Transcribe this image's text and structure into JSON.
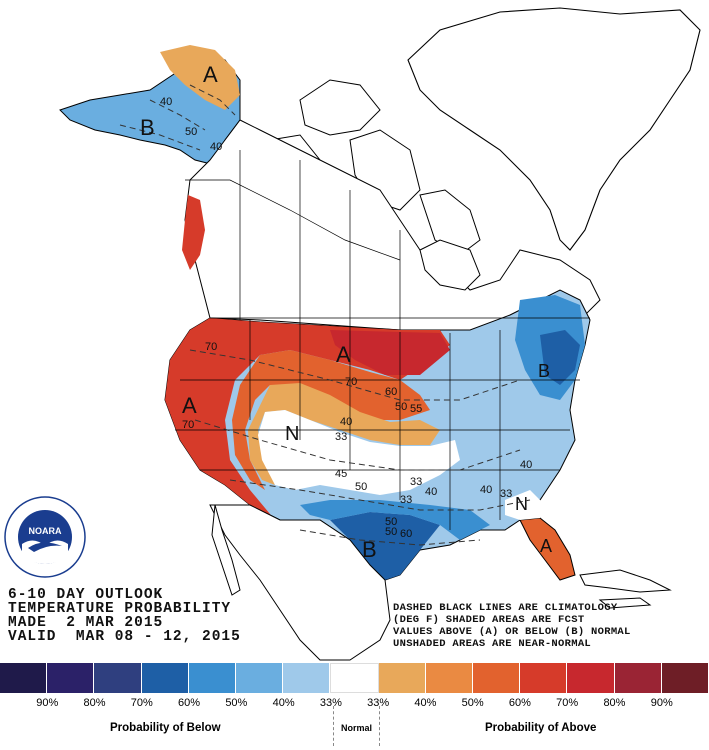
{
  "product": {
    "line1": "6-10 DAY OUTLOOK",
    "line2": "TEMPERATURE PROBABILITY",
    "line3": "MADE  2 MAR 2015",
    "line4": "VALID  MAR 08 - 12, 2015"
  },
  "notes": {
    "line1": "DASHED BLACK LINES ARE CLIMATOLOGY",
    "line2": "(DEG F) SHADED AREAS ARE FCST",
    "line3": "VALUES ABOVE (A) OR BELOW (B) NORMAL",
    "line4": "UNSHADED AREAS ARE NEAR-NORMAL"
  },
  "logo": {
    "text": "NOARA",
    "ring": "NATIONAL OCEANIC AND ATMOSPHERIC ADMINISTRATION · U.S. DEPARTMENT OF COMMERCE"
  },
  "legend": {
    "colors": [
      "#1f1a4a",
      "#2b2168",
      "#2f3f7f",
      "#1e5fa6",
      "#3a8fd0",
      "#6aaee0",
      "#9fc9ea",
      "#ffffff",
      "#e8a85a",
      "#ea8a42",
      "#e2622e",
      "#d63b2a",
      "#c7282e",
      "#9a2434",
      "#6e1e26"
    ],
    "ticks": [
      "90%",
      "80%",
      "70%",
      "60%",
      "50%",
      "40%",
      "33%",
      "33%",
      "40%",
      "50%",
      "60%",
      "70%",
      "80%",
      "90%"
    ],
    "below_caption": "Probability of Below",
    "normal_caption": "Normal",
    "above_caption": "Probability of Above"
  },
  "map_labels": {
    "A_alaska": "A",
    "B_alaska": "B",
    "A_west": "A",
    "A_plains": "A",
    "N_central": "N",
    "B_texas": "B",
    "B_east": "B",
    "N_southeast": "N",
    "A_florida": "A",
    "contours": [
      "40",
      "50",
      "40",
      "70",
      "70",
      "70",
      "60",
      "50",
      "55",
      "40",
      "33",
      "45",
      "50",
      "33",
      "40",
      "40",
      "33",
      "40",
      "50",
      "50",
      "60",
      "33"
    ]
  },
  "colors": {
    "coast": "#000000",
    "border": "#000000",
    "climatology": "#333333"
  }
}
